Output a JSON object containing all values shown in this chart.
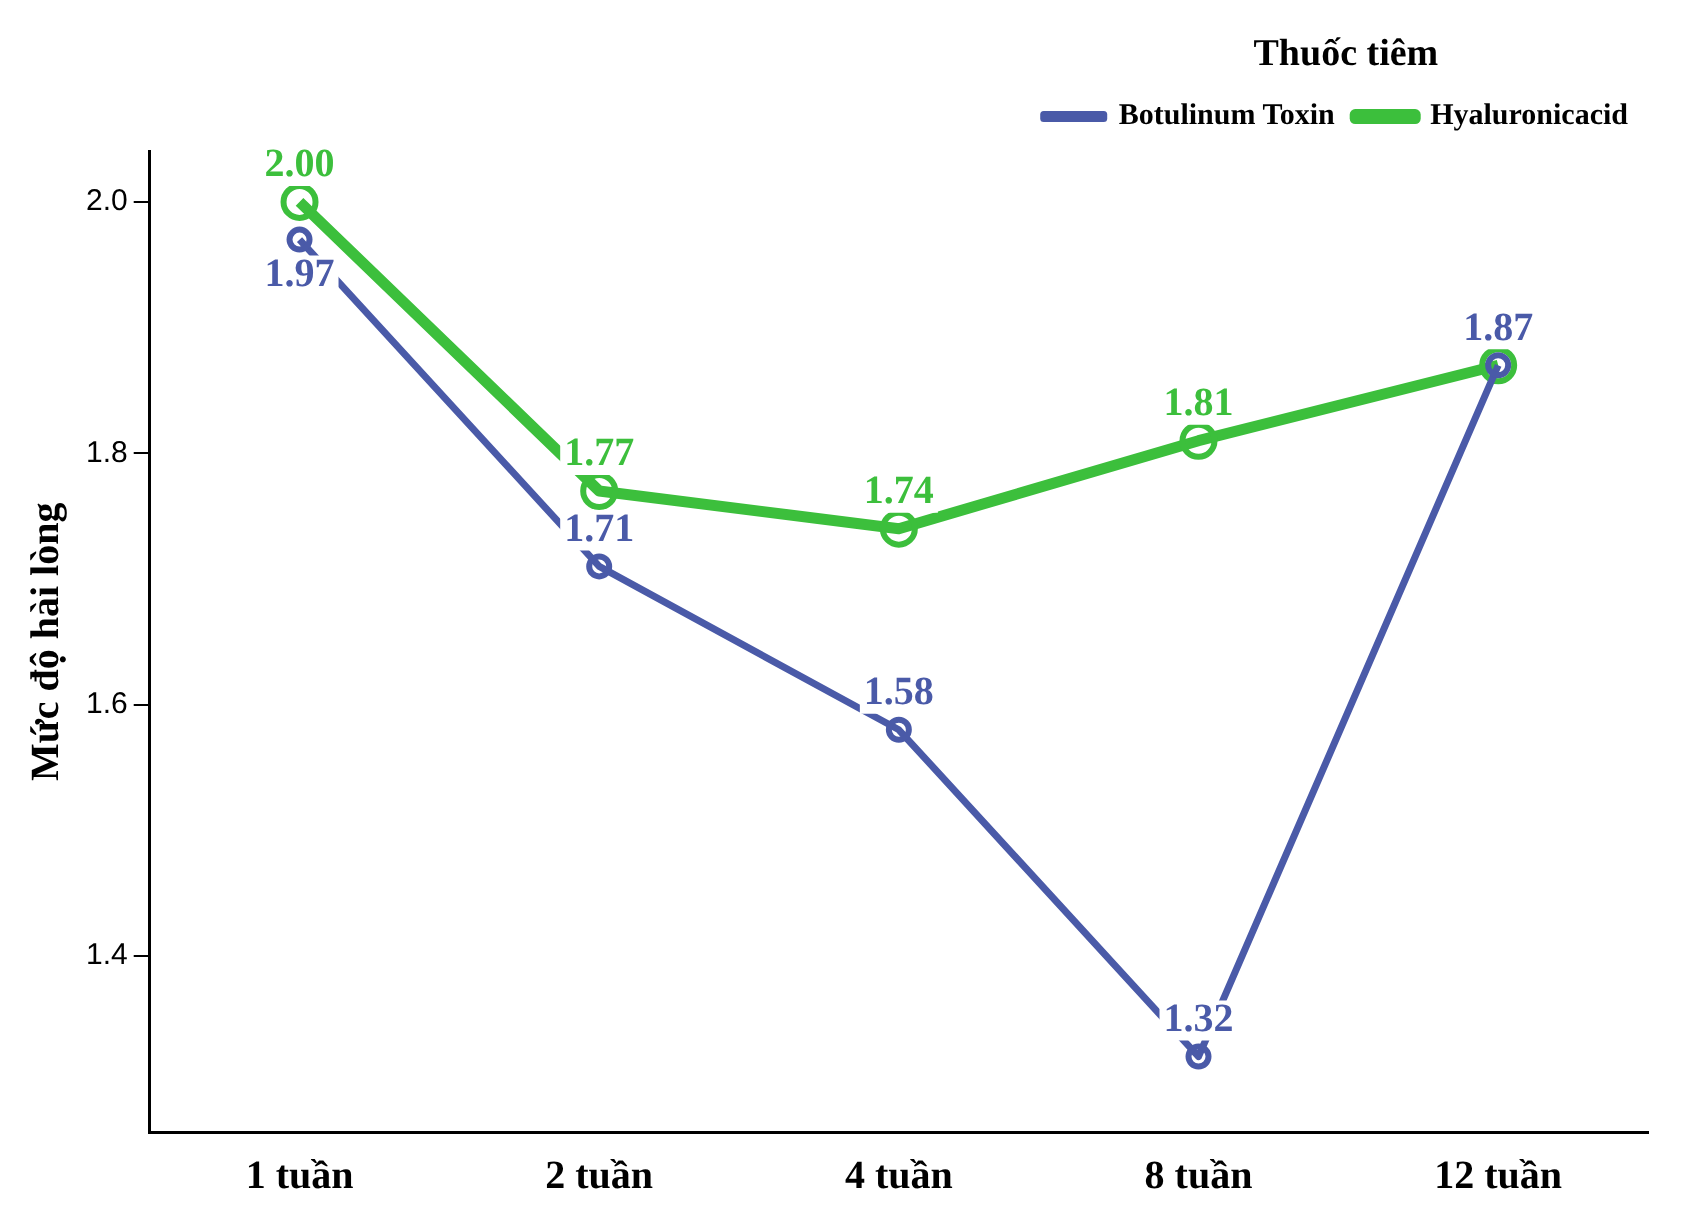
{
  "chart_data": {
    "type": "line",
    "ylabel": "Mức độ hài lòng",
    "legend_title": "Thuốc tiêm",
    "categories": [
      "1 tuần",
      "2 tuần",
      "4 tuần",
      "8 tuần",
      "12 tuần"
    ],
    "series": [
      {
        "name": "Botulinum Toxin",
        "color": "#4a5aa8",
        "values": [
          1.97,
          1.71,
          1.58,
          1.32,
          1.87
        ],
        "value_labels": [
          "1.97",
          "1.71",
          "1.58",
          "1.32",
          "1.87"
        ]
      },
      {
        "name": "Hyaluronicacid",
        "color": "#3cbf3c",
        "values": [
          2.0,
          1.77,
          1.74,
          1.81,
          1.87
        ],
        "value_labels": [
          "2.00",
          "1.77",
          "1.74",
          "1.81",
          null
        ]
      }
    ],
    "ylim": [
      1.26,
      2.04
    ],
    "yticks": [
      {
        "value": 1.4,
        "label": "1.4"
      },
      {
        "value": 1.6,
        "label": "1.6"
      },
      {
        "value": 1.8,
        "label": "1.8"
      },
      {
        "value": 2.0,
        "label": "2.0"
      }
    ],
    "grid": false,
    "legend": "top right",
    "marker": "circle",
    "line_style": "solid"
  }
}
